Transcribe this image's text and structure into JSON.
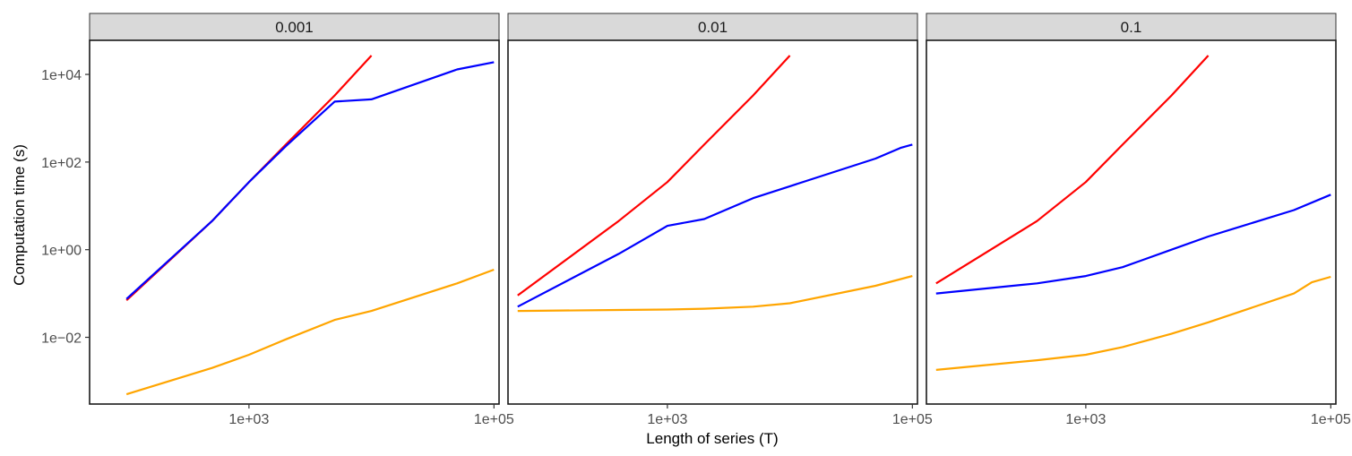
{
  "chart_data": {
    "type": "line",
    "xlabel": "Length of series (T)",
    "ylabel": "Computation time (s)",
    "xscale": "log",
    "yscale": "log",
    "xlim": [
      50,
      110000
    ],
    "ylim": [
      0.0003,
      60000
    ],
    "xticks": [
      1000,
      100000
    ],
    "xtick_labels": [
      "1e+03",
      "1e+05"
    ],
    "yticks": [
      0.01,
      1,
      100,
      10000
    ],
    "ytick_labels": [
      "1e−02",
      "1e+00",
      "1e+02",
      "1e+04"
    ],
    "grid": false,
    "legend": "none",
    "facets": [
      {
        "label": "0.001",
        "series": [
          {
            "color": "#ff0000",
            "x": [
              100,
              500,
              1000,
              2000,
              5000,
              10000
            ],
            "y": [
              0.07,
              4.5,
              35,
              250,
              3300,
              27000
            ]
          },
          {
            "color": "#0000ff",
            "x": [
              100,
              500,
              1000,
              2000,
              5000,
              10000,
              50000,
              100000
            ],
            "y": [
              0.075,
              4.5,
              35,
              230,
              2400,
              2700,
              13000,
              19000
            ]
          },
          {
            "color": "#ffa500",
            "x": [
              100,
              500,
              1000,
              2000,
              5000,
              10000,
              50000,
              100000
            ],
            "y": [
              0.0005,
              0.002,
              0.004,
              0.009,
              0.025,
              0.04,
              0.17,
              0.35
            ]
          }
        ]
      },
      {
        "label": "0.01",
        "series": [
          {
            "color": "#ff0000",
            "x": [
              60,
              400,
              1000,
              2000,
              5000,
              10000
            ],
            "y": [
              0.09,
              4.5,
              35,
              250,
              3300,
              27000
            ]
          },
          {
            "color": "#0000ff",
            "x": [
              60,
              400,
              1000,
              2000,
              5000,
              10000,
              50000,
              80000,
              100000
            ],
            "y": [
              0.05,
              0.8,
              3.5,
              5,
              15,
              28,
              120,
              210,
              250
            ]
          },
          {
            "color": "#ffa500",
            "x": [
              60,
              400,
              1000,
              2000,
              5000,
              10000,
              50000,
              100000
            ],
            "y": [
              0.04,
              0.042,
              0.043,
              0.045,
              0.05,
              0.06,
              0.15,
              0.25
            ]
          }
        ]
      },
      {
        "label": "0.1",
        "series": [
          {
            "color": "#ff0000",
            "x": [
              60,
              400,
              1000,
              2000,
              5000,
              10000
            ],
            "y": [
              0.17,
              4.5,
              35,
              250,
              3300,
              27000
            ]
          },
          {
            "color": "#0000ff",
            "x": [
              60,
              400,
              1000,
              2000,
              5000,
              10000,
              50000,
              100000
            ],
            "y": [
              0.1,
              0.17,
              0.25,
              0.4,
              1,
              2,
              8,
              18
            ]
          },
          {
            "color": "#ffa500",
            "x": [
              60,
              400,
              1000,
              2000,
              5000,
              10000,
              50000,
              70000,
              100000
            ],
            "y": [
              0.0018,
              0.003,
              0.004,
              0.006,
              0.012,
              0.022,
              0.1,
              0.18,
              0.24
            ]
          }
        ]
      }
    ]
  }
}
